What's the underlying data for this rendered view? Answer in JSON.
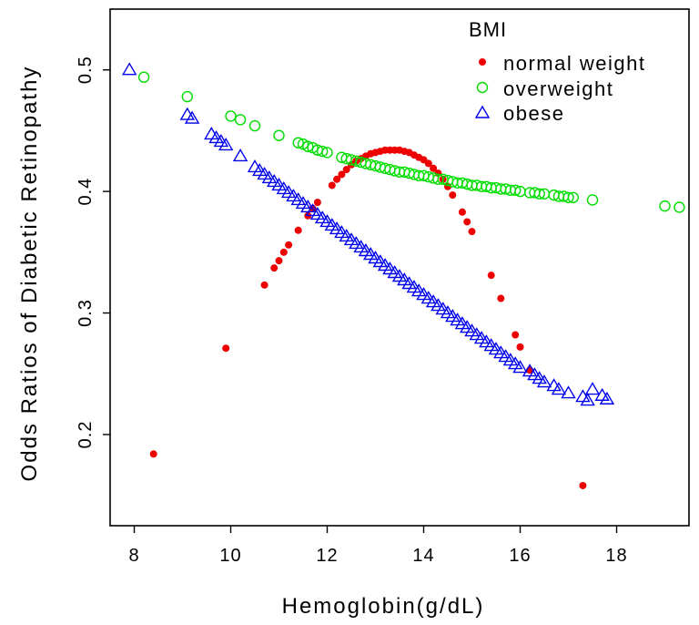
{
  "chart_data": {
    "type": "scatter",
    "xlabel": "Hemoglobin(g/dL)",
    "ylabel": "Odds Ratios of Diabetic Retinopathy",
    "xlim": [
      7.5,
      19.5
    ],
    "ylim": [
      0.125,
      0.55
    ],
    "x_ticks": [
      "8",
      "10",
      "12",
      "14",
      "16",
      "18"
    ],
    "y_ticks": [
      "0.2",
      "0.3",
      "0.4",
      "0.5"
    ],
    "legend": {
      "title": "BMI",
      "placement": "top-right",
      "entries": [
        "normal weight",
        "overweight",
        "obese"
      ]
    },
    "series": [
      {
        "name": "normal weight",
        "marker": "filled-circle",
        "color": "#ee0000",
        "points": [
          [
            8.4,
            0.184
          ],
          [
            9.9,
            0.271
          ],
          [
            10.7,
            0.323
          ],
          [
            10.9,
            0.337
          ],
          [
            11.0,
            0.343
          ],
          [
            11.1,
            0.35
          ],
          [
            11.2,
            0.356
          ],
          [
            11.4,
            0.368
          ],
          [
            11.6,
            0.38
          ],
          [
            11.7,
            0.386
          ],
          [
            11.8,
            0.391
          ],
          [
            12.1,
            0.405
          ],
          [
            12.2,
            0.41
          ],
          [
            12.3,
            0.414
          ],
          [
            12.4,
            0.418
          ],
          [
            12.5,
            0.422
          ],
          [
            12.6,
            0.425
          ],
          [
            12.7,
            0.427
          ],
          [
            12.8,
            0.429
          ],
          [
            12.9,
            0.431
          ],
          [
            13.0,
            0.432
          ],
          [
            13.1,
            0.433
          ],
          [
            13.2,
            0.434
          ],
          [
            13.3,
            0.434
          ],
          [
            13.4,
            0.434
          ],
          [
            13.5,
            0.434
          ],
          [
            13.6,
            0.433
          ],
          [
            13.7,
            0.432
          ],
          [
            13.8,
            0.43
          ],
          [
            13.9,
            0.428
          ],
          [
            14.0,
            0.426
          ],
          [
            14.1,
            0.423
          ],
          [
            14.2,
            0.419
          ],
          [
            14.3,
            0.415
          ],
          [
            14.4,
            0.41
          ],
          [
            14.5,
            0.404
          ],
          [
            14.6,
            0.397
          ],
          [
            14.8,
            0.383
          ],
          [
            14.9,
            0.375
          ],
          [
            15.0,
            0.367
          ],
          [
            15.4,
            0.331
          ],
          [
            15.6,
            0.312
          ],
          [
            15.9,
            0.282
          ],
          [
            16.0,
            0.272
          ],
          [
            16.2,
            0.253
          ],
          [
            17.3,
            0.158
          ]
        ]
      },
      {
        "name": "overweight",
        "marker": "open-circle",
        "color": "#00dd00",
        "points": [
          [
            8.2,
            0.494
          ],
          [
            9.1,
            0.478
          ],
          [
            10.0,
            0.462
          ],
          [
            10.2,
            0.459
          ],
          [
            10.5,
            0.454
          ],
          [
            11.0,
            0.446
          ],
          [
            11.4,
            0.44
          ],
          [
            11.5,
            0.439
          ],
          [
            11.6,
            0.437
          ],
          [
            11.7,
            0.436
          ],
          [
            11.8,
            0.434
          ],
          [
            11.9,
            0.433
          ],
          [
            12.0,
            0.432
          ],
          [
            12.3,
            0.428
          ],
          [
            12.4,
            0.427
          ],
          [
            12.5,
            0.426
          ],
          [
            12.6,
            0.425
          ],
          [
            12.7,
            0.424
          ],
          [
            12.8,
            0.423
          ],
          [
            12.9,
            0.422
          ],
          [
            13.0,
            0.421
          ],
          [
            13.1,
            0.42
          ],
          [
            13.2,
            0.419
          ],
          [
            13.3,
            0.418
          ],
          [
            13.4,
            0.417
          ],
          [
            13.5,
            0.416
          ],
          [
            13.6,
            0.416
          ],
          [
            13.7,
            0.415
          ],
          [
            13.8,
            0.414
          ],
          [
            13.9,
            0.413
          ],
          [
            14.0,
            0.413
          ],
          [
            14.1,
            0.412
          ],
          [
            14.2,
            0.411
          ],
          [
            14.3,
            0.41
          ],
          [
            14.4,
            0.41
          ],
          [
            14.5,
            0.409
          ],
          [
            14.6,
            0.408
          ],
          [
            14.7,
            0.407
          ],
          [
            14.8,
            0.407
          ],
          [
            14.9,
            0.406
          ],
          [
            15.0,
            0.405
          ],
          [
            15.1,
            0.405
          ],
          [
            15.2,
            0.404
          ],
          [
            15.3,
            0.404
          ],
          [
            15.4,
            0.403
          ],
          [
            15.5,
            0.403
          ],
          [
            15.6,
            0.402
          ],
          [
            15.7,
            0.402
          ],
          [
            15.8,
            0.401
          ],
          [
            15.9,
            0.401
          ],
          [
            16.0,
            0.4
          ],
          [
            16.2,
            0.399
          ],
          [
            16.3,
            0.399
          ],
          [
            16.4,
            0.398
          ],
          [
            16.5,
            0.398
          ],
          [
            16.7,
            0.397
          ],
          [
            16.8,
            0.396
          ],
          [
            16.9,
            0.396
          ],
          [
            17.0,
            0.395
          ],
          [
            17.1,
            0.395
          ],
          [
            17.5,
            0.393
          ],
          [
            19.0,
            0.388
          ],
          [
            19.3,
            0.387
          ]
        ]
      },
      {
        "name": "obese",
        "marker": "open-triangle",
        "color": "#0000ee",
        "points": [
          [
            7.9,
            0.5
          ],
          [
            9.1,
            0.463
          ],
          [
            9.2,
            0.46
          ],
          [
            9.6,
            0.447
          ],
          [
            9.7,
            0.444
          ],
          [
            9.8,
            0.441
          ],
          [
            9.9,
            0.438
          ],
          [
            10.2,
            0.429
          ],
          [
            10.5,
            0.42
          ],
          [
            10.6,
            0.417
          ],
          [
            10.7,
            0.414
          ],
          [
            10.8,
            0.411
          ],
          [
            10.9,
            0.408
          ],
          [
            11.0,
            0.405
          ],
          [
            11.1,
            0.402
          ],
          [
            11.2,
            0.399
          ],
          [
            11.3,
            0.396
          ],
          [
            11.4,
            0.393
          ],
          [
            11.5,
            0.39
          ],
          [
            11.6,
            0.387
          ],
          [
            11.7,
            0.384
          ],
          [
            11.8,
            0.381
          ],
          [
            11.9,
            0.378
          ],
          [
            12.0,
            0.375
          ],
          [
            12.1,
            0.372
          ],
          [
            12.2,
            0.369
          ],
          [
            12.3,
            0.366
          ],
          [
            12.4,
            0.363
          ],
          [
            12.5,
            0.36
          ],
          [
            12.6,
            0.357
          ],
          [
            12.7,
            0.354
          ],
          [
            12.8,
            0.351
          ],
          [
            12.9,
            0.348
          ],
          [
            13.0,
            0.345
          ],
          [
            13.1,
            0.342
          ],
          [
            13.2,
            0.339
          ],
          [
            13.3,
            0.336
          ],
          [
            13.4,
            0.333
          ],
          [
            13.5,
            0.33
          ],
          [
            13.6,
            0.327
          ],
          [
            13.7,
            0.324
          ],
          [
            13.8,
            0.321
          ],
          [
            13.9,
            0.318
          ],
          [
            14.0,
            0.315
          ],
          [
            14.1,
            0.312
          ],
          [
            14.2,
            0.309
          ],
          [
            14.3,
            0.306
          ],
          [
            14.4,
            0.303
          ],
          [
            14.5,
            0.3
          ],
          [
            14.6,
            0.297
          ],
          [
            14.7,
            0.294
          ],
          [
            14.8,
            0.291
          ],
          [
            14.9,
            0.288
          ],
          [
            15.0,
            0.285
          ],
          [
            15.1,
            0.282
          ],
          [
            15.2,
            0.279
          ],
          [
            15.3,
            0.276
          ],
          [
            15.4,
            0.273
          ],
          [
            15.5,
            0.27
          ],
          [
            15.6,
            0.267
          ],
          [
            15.7,
            0.264
          ],
          [
            15.8,
            0.261
          ],
          [
            15.9,
            0.258
          ],
          [
            16.0,
            0.255
          ],
          [
            16.2,
            0.252
          ],
          [
            16.3,
            0.249
          ],
          [
            16.4,
            0.246
          ],
          [
            16.5,
            0.243
          ],
          [
            16.7,
            0.24
          ],
          [
            16.8,
            0.237
          ],
          [
            17.0,
            0.234
          ],
          [
            17.3,
            0.231
          ],
          [
            17.4,
            0.228
          ],
          [
            17.5,
            0.237
          ],
          [
            17.7,
            0.232
          ],
          [
            17.8,
            0.229
          ]
        ]
      }
    ]
  }
}
